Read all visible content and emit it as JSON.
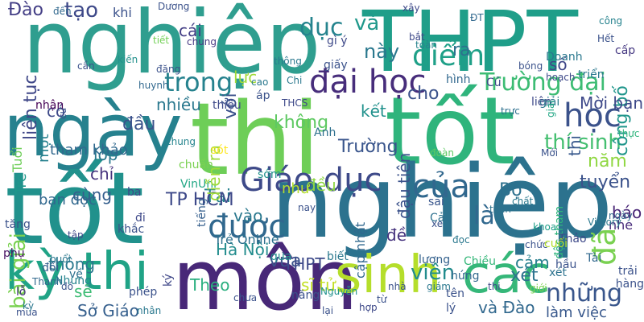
{
  "word_cloud": {
    "words": [
      {
        "text": "nghiệp",
        "color": "#2f9e8f"
      },
      {
        "text": "THPT",
        "color": "#1f9e89"
      },
      {
        "text": "ngày",
        "color": "#26818e"
      },
      {
        "text": "thi",
        "color": "#6ece58"
      },
      {
        "text": "tốt",
        "color": "#2fb47c"
      },
      {
        "text": "tốt",
        "color": "#21918c"
      },
      {
        "text": "nghiệp",
        "color": "#2c728e"
      },
      {
        "text": "môn",
        "color": "#482878"
      },
      {
        "text": "kỳ thi",
        "color": "#20a386"
      },
      {
        "text": "sinh",
        "color": "#b5de2b"
      },
      {
        "text": "các",
        "color": "#35b779"
      },
      {
        "text": "Giáo dục",
        "color": "#3e4a89"
      },
      {
        "text": "được",
        "color": "#31688e"
      },
      {
        "text": "của",
        "color": "#31688e"
      },
      {
        "text": "đại học",
        "color": "#472d7b"
      },
      {
        "text": "học",
        "color": "#3b528b"
      },
      {
        "text": "điểm",
        "color": "#1fa088"
      },
      {
        "text": "trong",
        "color": "#26828e"
      },
      {
        "text": "Trường đại",
        "color": "#3dbc74"
      },
      {
        "text": "những",
        "color": "#39568c"
      },
      {
        "text": "dục",
        "color": "#25848e"
      },
      {
        "text": "và",
        "color": "#1f988b"
      },
      {
        "text": "này",
        "color": "#2a788e"
      },
      {
        "text": "tạo",
        "color": "#3e4989"
      },
      {
        "text": "Đào",
        "color": "#433e85"
      },
      {
        "text": "thí sinh",
        "color": "#44bf70"
      },
      {
        "text": "đã",
        "color": "#7ad151"
      },
      {
        "text": "năm",
        "color": "#90d743"
      },
      {
        "text": "là",
        "color": "#31688e"
      },
      {
        "text": "Bộ",
        "color": "#2d708e"
      },
      {
        "text": "viên",
        "color": "#228c8d"
      },
      {
        "text": "xét",
        "color": "#2c728e"
      },
      {
        "text": "làm việc",
        "color": "#38588c"
      },
      {
        "text": "và Đào",
        "color": "#31688e"
      },
      {
        "text": "tuyển",
        "color": "#3b528b"
      },
      {
        "text": "công bố",
        "color": "#1f958b"
      },
      {
        "text": "Trường",
        "color": "#39558c"
      },
      {
        "text": "nhiều",
        "color": "#2a788e"
      },
      {
        "text": "đầu",
        "color": "#3b528b"
      },
      {
        "text": "không",
        "color": "#5ec962"
      },
      {
        "text": "kết",
        "color": "#21918c"
      },
      {
        "text": "Tại",
        "color": "#26828e"
      },
      {
        "text": "TP HCM",
        "color": "#3e4989"
      },
      {
        "text": "Sở Giáo",
        "color": "#355f8d"
      },
      {
        "text": "sẽ",
        "color": "#3dbc74"
      },
      {
        "text": "bài giải",
        "color": "#7ad151"
      },
      {
        "text": "liên tục",
        "color": "#3f4788"
      },
      {
        "text": "với",
        "color": "#3b528b"
      },
      {
        "text": "thông",
        "color": "#2a788e"
      },
      {
        "text": "lớp",
        "color": "#2a788e"
      },
      {
        "text": "cho",
        "color": "#3b528b"
      },
      {
        "text": "cái",
        "color": "#433e85"
      },
      {
        "text": "lực",
        "color": "#a0da39"
      },
      {
        "text": "ra",
        "color": "#2d708e"
      },
      {
        "text": "Hà Nội",
        "color": "#228c8d"
      },
      {
        "text": "vào",
        "color": "#2a788e"
      },
      {
        "text": "vừa",
        "color": "#3b528b"
      },
      {
        "text": "THPT",
        "color": "#3e4a89"
      },
      {
        "text": "sĩ tử",
        "color": "#c2df23"
      },
      {
        "text": "cảm",
        "color": "#277f8e"
      },
      {
        "text": "đề",
        "color": "#46337e"
      },
      {
        "text": "Theo",
        "color": "#29af7f"
      },
      {
        "text": "thi",
        "color": "#38588c"
      },
      {
        "text": "Mời bạn",
        "color": "#3e4989"
      },
      {
        "text": "cùng",
        "color": "#355f8d"
      },
      {
        "text": "chỉ",
        "color": "#46337e"
      },
      {
        "text": "có",
        "color": "#3e4989"
      },
      {
        "text": "báo",
        "color": "#482576"
      },
      {
        "text": "Trẻ Online",
        "color": "#2d708e"
      },
      {
        "text": "tham khảo",
        "color": "#31688e"
      },
      {
        "text": "sớm",
        "color": "#21918c"
      },
      {
        "text": "khi",
        "color": "#3b528b"
      },
      {
        "text": "đều",
        "color": "#8fd744"
      },
      {
        "text": "chuẩn",
        "color": "#7ad151"
      },
      {
        "text": "đậu tiên",
        "color": "#3b528b"
      },
      {
        "text": "Trẻ",
        "color": "#1f978b"
      },
      {
        "text": "một",
        "color": "#26818e"
      },
      {
        "text": "bạn đọc",
        "color": "#31688e"
      },
      {
        "text": "VinUni",
        "color": "#22a785"
      },
      {
        "text": "cập nhật",
        "color": "#31688e"
      },
      {
        "text": "Tuổi",
        "color": "#6ece58"
      },
      {
        "text": "diễn ra",
        "color": "#9fda3a"
      },
      {
        "text": "số",
        "color": "#3f4788"
      },
      {
        "text": "Doanh",
        "color": "#2a788e"
      },
      {
        "text": "như",
        "color": "#b5de2b"
      },
      {
        "text": "tiếng",
        "color": "#355f8d"
      },
      {
        "text": "nhe",
        "color": "#472a7a"
      },
      {
        "text": "độc tham",
        "color": "#2fb47c"
      },
      {
        "text": "Cả",
        "color": "#2d708e"
      },
      {
        "text": "xét",
        "color": "#2c728e"
      },
      {
        "text": "cấp",
        "color": "#453882"
      },
      {
        "text": "thực",
        "color": "#2fb47c"
      },
      {
        "text": "tăng",
        "color": "#3b528b"
      },
      {
        "text": "đến",
        "color": "#31688e"
      },
      {
        "text": "Nhưng",
        "color": "#25848e"
      },
      {
        "text": "giải",
        "color": "#2a788e"
      },
      {
        "text": "chung",
        "color": "#25848e"
      },
      {
        "text": "chung",
        "color": "#453882"
      },
      {
        "text": "tiết",
        "color": "#73d056"
      },
      {
        "text": "giấy",
        "color": "#3b528b"
      },
      {
        "text": "tập",
        "color": "#3f4788"
      },
      {
        "text": "ngày",
        "color": "#31688e"
      },
      {
        "text": "trải",
        "color": "#3b528b"
      },
      {
        "text": "sót",
        "color": "#fde725"
      },
      {
        "text": "Anh",
        "color": "#2d708e"
      },
      {
        "text": "chức",
        "color": "#3b528b"
      },
      {
        "text": "khoa",
        "color": "#1f9e89"
      },
      {
        "text": "đọc",
        "color": "#2a788e"
      },
      {
        "text": "lượng",
        "color": "#34618d"
      },
      {
        "text": "toán",
        "color": "#2c728e"
      },
      {
        "text": "phụ",
        "color": "#471063"
      },
      {
        "text": "đi",
        "color": "#3e4989"
      },
      {
        "text": "ký",
        "color": "#3f4788"
      },
      {
        "text": "biết",
        "color": "#2a788e"
      },
      {
        "text": "qua",
        "color": "#21918c"
      },
      {
        "text": "đối",
        "color": "#355f8d"
      },
      {
        "text": "về",
        "color": "#2d708e"
      },
      {
        "text": "khắc",
        "color": "#3b528b"
      },
      {
        "text": "ba",
        "color": "#3e4989"
      },
      {
        "text": "nay",
        "color": "#3b528b"
      },
      {
        "text": "xe",
        "color": "#3b528b"
      },
      {
        "text": "Thảo",
        "color": "#3e4989"
      },
      {
        "text": "hầu",
        "color": "#3b528b"
      },
      {
        "text": "chất",
        "color": "#2a788e"
      },
      {
        "text": "sai",
        "color": "#39568c"
      },
      {
        "text": "Victory",
        "color": "#2a788e"
      },
      {
        "text": "Tài",
        "color": "#31688e"
      },
      {
        "text": "lỗ",
        "color": "#46337e"
      },
      {
        "text": "nhận",
        "color": "#440154"
      },
      {
        "text": "thiệu",
        "color": "#3e4989"
      },
      {
        "text": "toàn",
        "color": "#26828e"
      },
      {
        "text": "bắt",
        "color": "#3e4989"
      },
      {
        "text": "ĐT",
        "color": "#31688e"
      },
      {
        "text": "xây",
        "color": "#3e4989"
      },
      {
        "text": "gì ý",
        "color": "#3e4989"
      },
      {
        "text": "Củ",
        "color": "#3e4989"
      },
      {
        "text": "hình",
        "color": "#31688e"
      },
      {
        "text": "triển",
        "color": "#2a788e"
      },
      {
        "text": "Hết",
        "color": "#3b528b"
      },
      {
        "text": "công",
        "color": "#26828e"
      },
      {
        "text": "bóng",
        "color": "#3b528b"
      },
      {
        "text": "buổi",
        "color": "#2a788e"
      },
      {
        "text": "thông",
        "color": "#2a788e"
      },
      {
        "text": "cao",
        "color": "#2a788e"
      },
      {
        "text": "áp",
        "color": "#3b528b"
      },
      {
        "text": "Chi",
        "color": "#2a788e"
      },
      {
        "text": "THCS",
        "color": "#3e4989"
      },
      {
        "text": "huynh",
        "color": "#31688e"
      },
      {
        "text": "đăng",
        "color": "#3b528b"
      },
      {
        "text": "cần",
        "color": "#3b528b"
      },
      {
        "text": "cử",
        "color": "#3b528b"
      },
      {
        "text": "kiến",
        "color": "#21918c"
      },
      {
        "text": "Dương",
        "color": "#3b528b"
      },
      {
        "text": "trực",
        "color": "#2d708e"
      },
      {
        "text": "liên",
        "color": "#3e4989"
      },
      {
        "text": "giải",
        "color": "#22a785"
      },
      {
        "text": "hoạch",
        "color": "#3e4989"
      },
      {
        "text": "Mới",
        "color": "#3b528b"
      },
      {
        "text": "đoàn",
        "color": "#5ec962"
      },
      {
        "text": "hứng",
        "color": "#31688e"
      },
      {
        "text": "phép",
        "color": "#3b528b"
      },
      {
        "text": "Chiều",
        "color": "#35b779"
      },
      {
        "text": "Nguyễn",
        "color": "#21918c"
      },
      {
        "text": "hợp",
        "color": "#3e4989"
      },
      {
        "text": "tên",
        "color": "#3b528b"
      },
      {
        "text": "lý",
        "color": "#3b528b"
      },
      {
        "text": "lại",
        "color": "#3b528b"
      },
      {
        "text": "năng",
        "color": "#3b528b"
      },
      {
        "text": "nhân",
        "color": "#2a788e"
      },
      {
        "text": "hàng",
        "color": "#3b528b"
      },
      {
        "text": "cuối",
        "color": "#b5de2b"
      },
      {
        "text": "giới",
        "color": "#7ad151"
      },
      {
        "text": "mùa",
        "color": "#3b528b"
      },
      {
        "text": "Thanh",
        "color": "#31688e"
      },
      {
        "text": "chưa",
        "color": "#3b528b"
      },
      {
        "text": "nhà",
        "color": "#3b528b"
      },
      {
        "text": "giám",
        "color": "#2a788e"
      },
      {
        "text": "từ",
        "color": "#3b528b"
      },
      {
        "text": "đó",
        "color": "#3b528b"
      },
      {
        "text": "kỳ",
        "color": "#2a788e"
      },
      {
        "text": "thi",
        "color": "#3e4989"
      },
      {
        "text": "truyền",
        "color": "#fde725"
      }
    ]
  }
}
